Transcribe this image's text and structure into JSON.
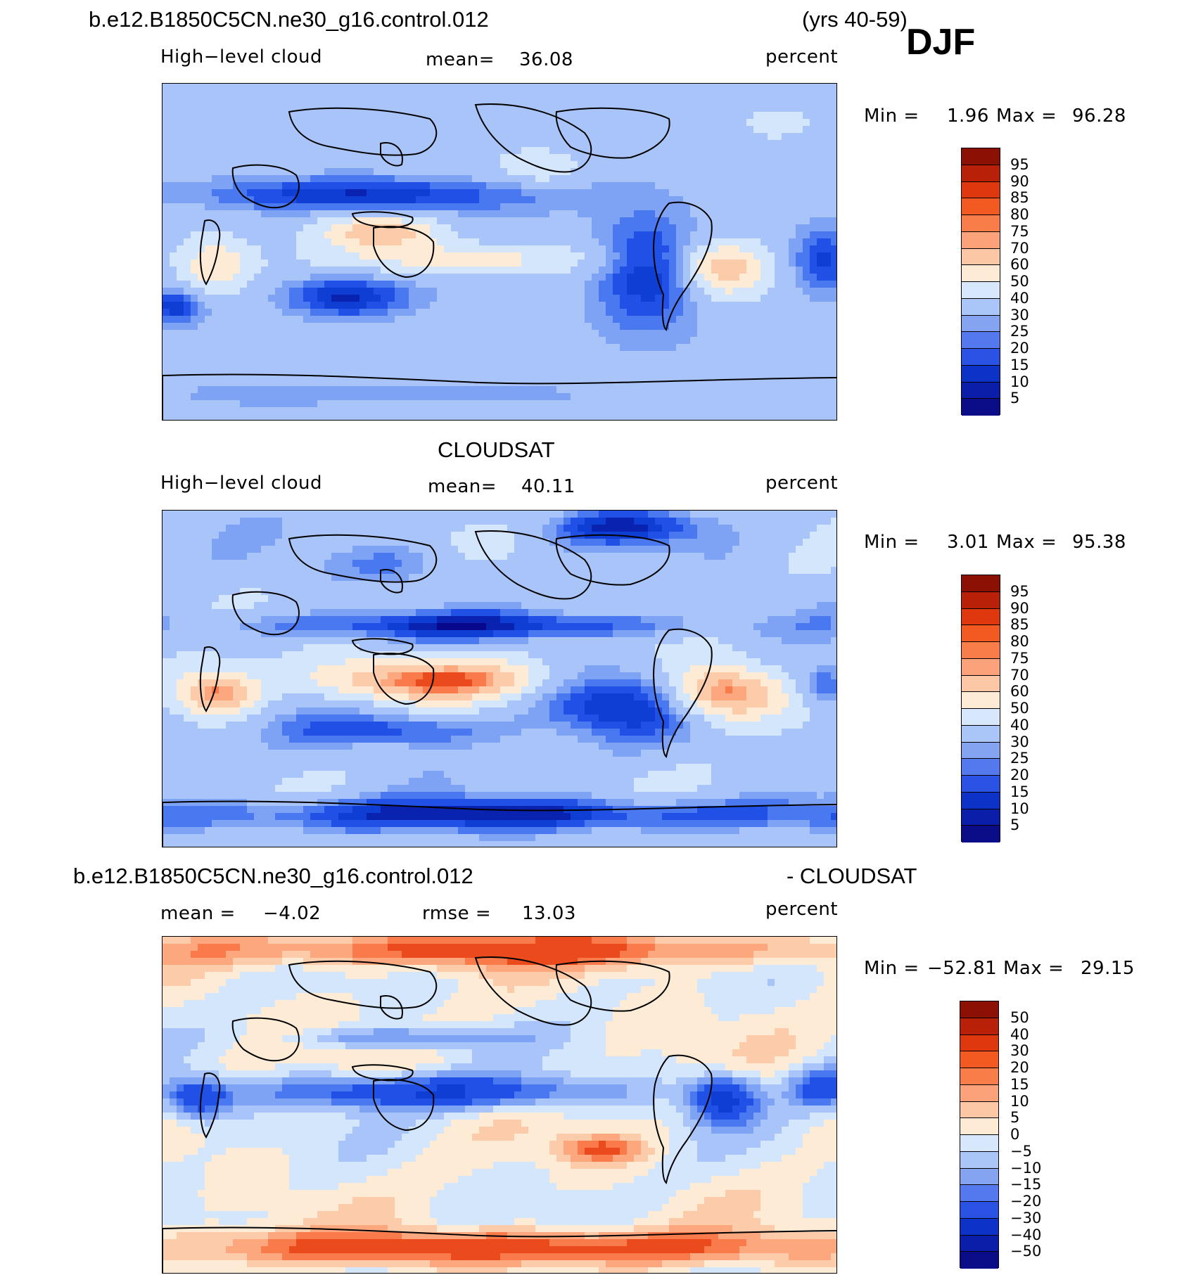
{
  "header": {
    "case_name": "b.e12.B1850C5CN.ne30_g16.control.012",
    "years": "(yrs 40-59)",
    "season": "DJF"
  },
  "panels": [
    {
      "id": "model",
      "title": "",
      "variable": "High−level cloud",
      "mean_label": "mean=",
      "mean_value": "36.08",
      "units": "percent",
      "min_label": "Min =",
      "min_value": "1.96",
      "max_label": "Max =",
      "max_value": "96.28",
      "colorbar_labels": [
        "95",
        "90",
        "85",
        "80",
        "75",
        "70",
        "60",
        "50",
        "40",
        "30",
        "25",
        "20",
        "15",
        "10",
        "5"
      ]
    },
    {
      "id": "obs",
      "title": "CLOUDSAT",
      "variable": "High−level cloud",
      "mean_label": "mean=",
      "mean_value": "40.11",
      "units": "percent",
      "min_label": "Min =",
      "min_value": "3.01",
      "max_label": "Max =",
      "max_value": "95.38",
      "colorbar_labels": [
        "95",
        "90",
        "85",
        "80",
        "75",
        "70",
        "60",
        "50",
        "40",
        "30",
        "25",
        "20",
        "15",
        "10",
        "5"
      ]
    },
    {
      "id": "diff",
      "title_left": "b.e12.B1850C5CN.ne30_g16.control.012",
      "title_right": "- CLOUDSAT",
      "mean_label": "mean =",
      "mean_value": "−4.02",
      "rmse_label": "rmse =",
      "rmse_value": "13.03",
      "units": "percent",
      "min_label": "Min =",
      "min_value": "−52.81",
      "max_label": "Max =",
      "max_value": "29.15",
      "colorbar_labels": [
        "50",
        "40",
        "30",
        "20",
        "15",
        "10",
        "5",
        "0",
        "−5",
        "−10",
        "−15",
        "−20",
        "−30",
        "−40",
        "−50"
      ]
    }
  ],
  "colors": {
    "fill_levels": [
      "#08088c",
      "#0a22b0",
      "#0e3ed4",
      "#2050e6",
      "#4a78f0",
      "#7ea2f4",
      "#a8c4f8",
      "#d4e6fc",
      "#fdebd6",
      "#fccbaa",
      "#fca77e",
      "#f97b4c",
      "#eb4a1c",
      "#c82e0c",
      "#961c06",
      "#7a1204"
    ],
    "colorbar_top_to_bottom": [
      "#8c1004",
      "#b82008",
      "#e0380e",
      "#f25a22",
      "#f97d48",
      "#fba27a",
      "#fbc7a4",
      "#fdebd6",
      "#d8e8fc",
      "#aac6f8",
      "#84a4f2",
      "#5478ee",
      "#2a52e4",
      "#0c32c8",
      "#0a1eaa",
      "#0a0c88"
    ],
    "coastline": "#000000"
  }
}
